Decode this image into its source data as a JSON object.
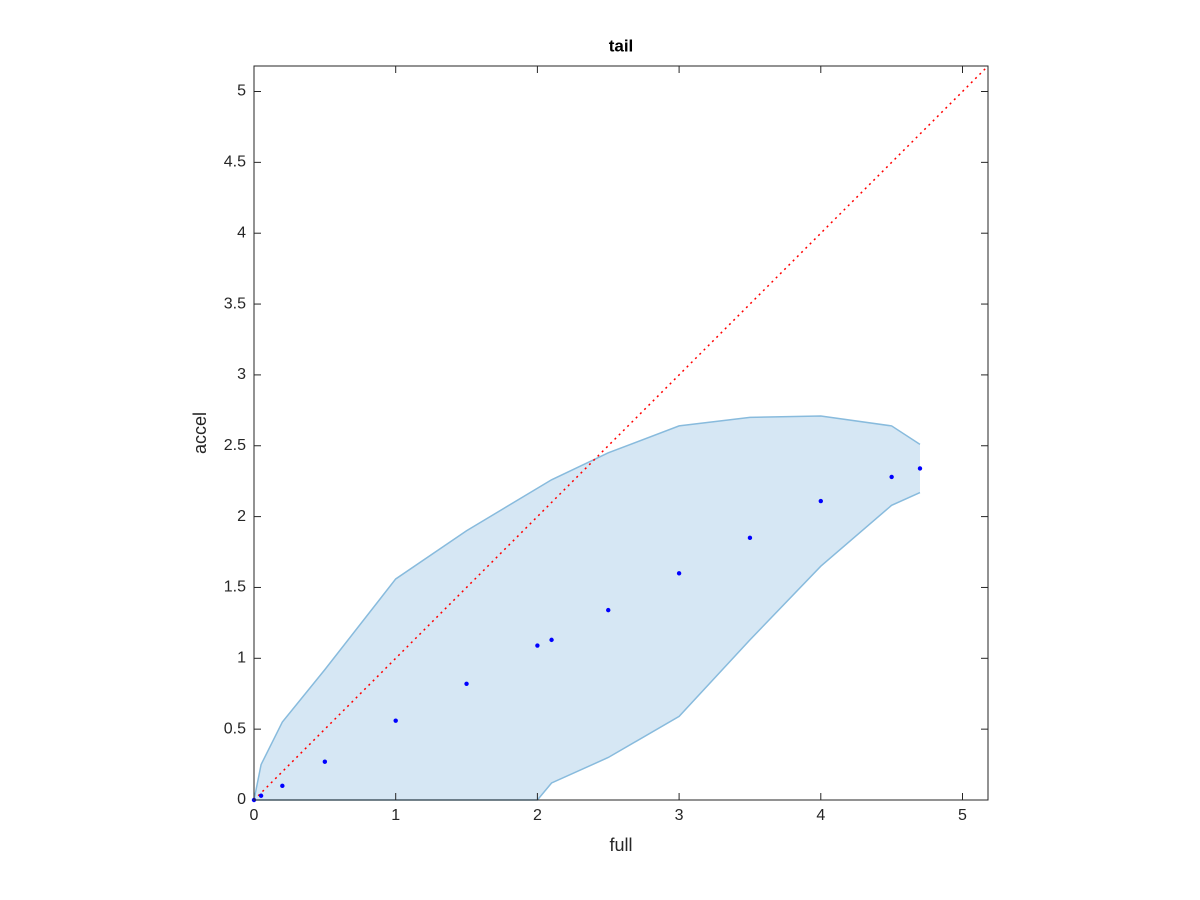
{
  "chart_data": {
    "type": "line",
    "title": "tail",
    "x_label": "full",
    "y_label": "accel",
    "x": [
      0,
      0.05,
      0.2,
      0.5,
      1,
      1.5,
      2,
      2.1,
      2.5,
      3,
      3.5,
      4,
      4.5,
      4.7
    ],
    "series": [
      {
        "color": "#0000ff",
        "marker": "dots",
        "values": [
          0,
          0.03,
          0.1,
          0.27,
          0.56,
          0.82,
          1.09,
          1.13,
          1.34,
          1.6,
          1.85,
          2.11,
          2.28,
          2.34
        ]
      }
    ],
    "band": {
      "fill": "#d6e7f4",
      "edge": "#88bbdd",
      "lower": [
        0,
        0,
        0,
        0,
        0,
        0,
        0,
        0.12,
        0.3,
        0.59,
        1.13,
        1.65,
        2.08,
        2.17
      ],
      "upper": [
        0,
        0.25,
        0.55,
        0.92,
        1.56,
        1.9,
        2.2,
        2.26,
        2.45,
        2.64,
        2.7,
        2.71,
        2.64,
        2.51
      ]
    },
    "reference": {
      "color": "#ff0000",
      "x": [
        0,
        5.18
      ],
      "y": [
        0,
        5.18
      ]
    },
    "xlim": [
      0,
      5.18
    ],
    "ylim": [
      0,
      5.18
    ],
    "xticks": [
      0,
      1,
      2,
      3,
      4,
      5
    ],
    "yticks": [
      0,
      0.5,
      1,
      1.5,
      2,
      2.5,
      3,
      3.5,
      4,
      4.5,
      5
    ]
  }
}
